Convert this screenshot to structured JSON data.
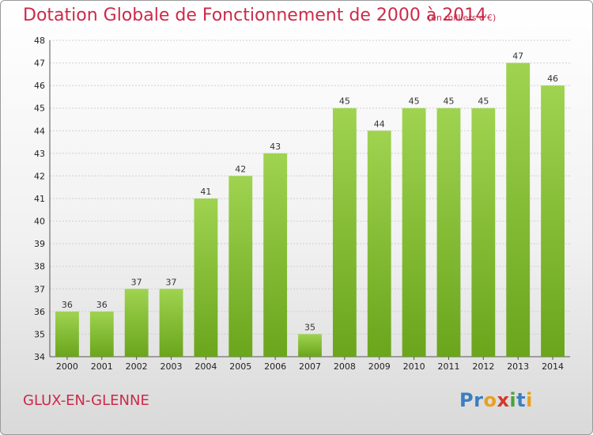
{
  "header": {
    "title": "Dotation Globale de Fonctionnement de 2000 à 2014",
    "unit_note": "(en milliers d'€)"
  },
  "footer": {
    "commune": "GLUX-EN-GLENNE",
    "logo_letters": [
      "P",
      "r",
      "o",
      "x",
      "i",
      "t",
      "i"
    ]
  },
  "colors": {
    "accent": "#cc2a4a",
    "bar_light": "#9fd350",
    "bar_dark": "#6aa51c",
    "grid": "#cfcfcf",
    "logo": [
      "#3a7fc1",
      "#3a7fc1",
      "#e8a020",
      "#d23a2a",
      "#4aa33a",
      "#3a7fc1",
      "#e8a020"
    ]
  },
  "chart_data": {
    "type": "bar",
    "title": "Dotation Globale de Fonctionnement de 2000 à 2014",
    "subtitle": "(en milliers d'€)",
    "xlabel": "",
    "ylabel": "",
    "categories": [
      "2000",
      "2001",
      "2002",
      "2003",
      "2004",
      "2005",
      "2006",
      "2007",
      "2008",
      "2009",
      "2010",
      "2011",
      "2012",
      "2013",
      "2014"
    ],
    "values": [
      36,
      36,
      37,
      37,
      41,
      42,
      43,
      35,
      45,
      44,
      45,
      45,
      45,
      47,
      46
    ],
    "ylim": [
      34,
      48
    ],
    "yticks": [
      34,
      35,
      36,
      37,
      38,
      39,
      40,
      41,
      42,
      43,
      44,
      45,
      46,
      47,
      48
    ],
    "grid": true,
    "legend": "none"
  }
}
